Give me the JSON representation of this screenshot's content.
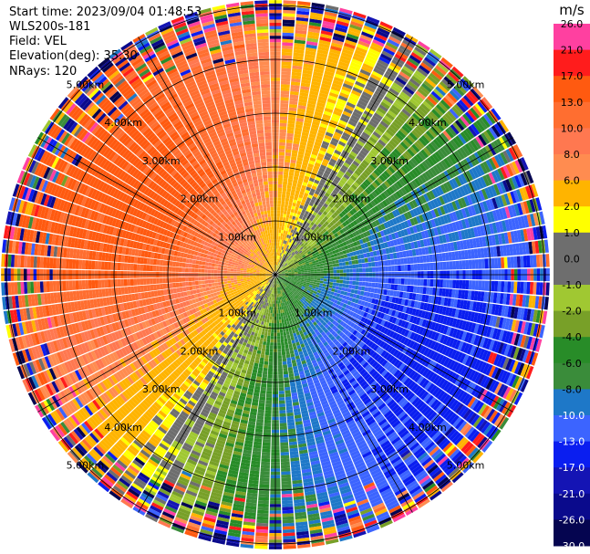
{
  "header": {
    "start_time": "Start time: 2023/09/04 01:48:53",
    "instrument": "WLS200s-181",
    "field": "Field: VEL",
    "elevation": "Elevation(deg): 35.30",
    "nrays": "NRays: 120"
  },
  "chart_data": {
    "type": "heatmap",
    "projection": "polar-ppi",
    "title": "",
    "field": "VEL",
    "units": "m/s",
    "n_rays": 120,
    "elevation_deg": 35.3,
    "range_rings_km": [
      1,
      2,
      3,
      4,
      5
    ],
    "ring_labels": [
      "1.00km",
      "2.00km",
      "3.00km",
      "4.00km",
      "5.00km"
    ],
    "max_range_km": 5.1,
    "colorbar": {
      "label": "m/s",
      "ticks": [
        "26.0",
        "21.0",
        "17.0",
        "13.0",
        "10.0",
        "8.0",
        "6.0",
        "2.0",
        "1.0",
        "0.0",
        "-1.0",
        "-2.0",
        "-4.0",
        "-6.0",
        "-8.0",
        "-10.0",
        "-13.0",
        "-17.0",
        "-21.0",
        "-26.0",
        "-30.0"
      ],
      "levels": [
        {
          "min": 21,
          "max": 26,
          "color": "#ff40a0"
        },
        {
          "min": 17,
          "max": 21,
          "color": "#ff1c1c"
        },
        {
          "min": 13,
          "max": 17,
          "color": "#ff5a10"
        },
        {
          "min": 10,
          "max": 13,
          "color": "#ff6e30"
        },
        {
          "min": 8,
          "max": 10,
          "color": "#ff7850"
        },
        {
          "min": 6,
          "max": 8,
          "color": "#ff8c50"
        },
        {
          "min": 2,
          "max": 6,
          "color": "#ffb400"
        },
        {
          "min": 1,
          "max": 2,
          "color": "#ffff00"
        },
        {
          "min": 0,
          "max": 1,
          "color": "#6e6e6e"
        },
        {
          "min": -1,
          "max": 0,
          "color": "#6e6e6e"
        },
        {
          "min": -2,
          "max": -1,
          "color": "#a0c832"
        },
        {
          "min": -4,
          "max": -2,
          "color": "#78a028"
        },
        {
          "min": -6,
          "max": -4,
          "color": "#288c28"
        },
        {
          "min": -8,
          "max": -6,
          "color": "#3a8c3a"
        },
        {
          "min": -10,
          "max": -8,
          "color": "#1e78c8"
        },
        {
          "min": -13,
          "max": -10,
          "color": "#3c64ff"
        },
        {
          "min": -17,
          "max": -13,
          "color": "#0a1ef0"
        },
        {
          "min": -21,
          "max": -17,
          "color": "#1414b4"
        },
        {
          "min": -26,
          "max": -21,
          "color": "#0a0a8c"
        },
        {
          "min": -30,
          "max": -26,
          "color": "#050550"
        }
      ]
    },
    "velocity_model": {
      "wind_speed_ms": 13,
      "wind_from_deg": 300,
      "noise_start_km": 4.0
    }
  }
}
